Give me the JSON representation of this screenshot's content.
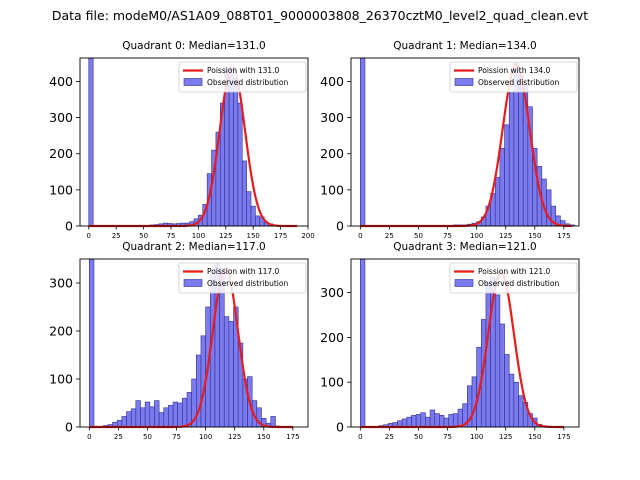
{
  "figure": {
    "suptitle": "Data file: modeM0/AS1A09_088T01_9000003808_26370cztM0_level2_quad_clean.evt",
    "colors": {
      "bar_fill": "#7b7bef",
      "bar_edge": "#2e2e8f",
      "fit_line": "#e81c1c",
      "axes": "#000000"
    }
  },
  "chart_data": [
    {
      "type": "bar",
      "title": "Quadrant 0: Median=131.0",
      "legend": {
        "fit_label": "Poission with 131.0",
        "obs_label": "Observed distribution",
        "placement": "top-right"
      },
      "xlim": [
        -8,
        200
      ],
      "ylim": [
        0,
        465
      ],
      "xticks": [
        0,
        25,
        50,
        75,
        100,
        125,
        150,
        175,
        200
      ],
      "yticks": [
        0,
        100,
        200,
        300,
        400
      ],
      "bin_width": 4,
      "bin_start": 0,
      "counts": [
        465,
        0,
        0,
        0,
        0,
        0,
        0,
        0,
        0,
        0,
        0,
        0,
        0,
        0,
        3,
        4,
        6,
        8,
        7,
        6,
        7,
        8,
        8,
        12,
        20,
        30,
        60,
        145,
        210,
        260,
        340,
        435,
        440,
        410,
        340,
        180,
        95,
        55,
        28,
        25,
        10,
        6,
        3,
        2,
        1,
        1,
        0,
        0,
        0
      ],
      "fit": {
        "peak": 440,
        "mean": 131,
        "sigma": 11.45,
        "range": [
          0,
          190
        ]
      }
    },
    {
      "type": "bar",
      "title": "Quadrant 1: Median=134.0",
      "legend": {
        "fit_label": "Poission with 134.0",
        "obs_label": "Observed distribution",
        "placement": "top-right"
      },
      "xlim": [
        -8,
        188
      ],
      "ylim": [
        0,
        465
      ],
      "xticks": [
        0,
        25,
        50,
        75,
        100,
        125,
        150,
        175
      ],
      "yticks": [
        0,
        100,
        200,
        300,
        400
      ],
      "bin_width": 4,
      "bin_start": 0,
      "counts": [
        465,
        0,
        0,
        0,
        0,
        0,
        0,
        0,
        0,
        0,
        0,
        0,
        0,
        0,
        0,
        0,
        0,
        0,
        0,
        2,
        3,
        3,
        3,
        5,
        8,
        12,
        25,
        55,
        90,
        135,
        215,
        280,
        370,
        450,
        420,
        390,
        330,
        215,
        165,
        130,
        100,
        55,
        28,
        15,
        6,
        3
      ],
      "fit": {
        "peak": 445,
        "mean": 134,
        "sigma": 11.58,
        "range": [
          0,
          182
        ]
      }
    },
    {
      "type": "bar",
      "title": "Quadrant 2: Median=117.0",
      "legend": {
        "fit_label": "Poission with 117.0",
        "obs_label": "Observed distribution",
        "placement": "top-right"
      },
      "xlim": [
        -8,
        188
      ],
      "ylim": [
        0,
        350
      ],
      "xticks": [
        0,
        25,
        50,
        75,
        100,
        125,
        150,
        175
      ],
      "yticks": [
        0,
        100,
        200,
        300
      ],
      "bin_width": 4,
      "bin_start": 0,
      "counts": [
        350,
        0,
        0,
        3,
        5,
        10,
        14,
        22,
        32,
        38,
        55,
        40,
        52,
        42,
        55,
        30,
        40,
        45,
        52,
        50,
        60,
        72,
        100,
        150,
        190,
        250,
        320,
        340,
        330,
        230,
        220,
        250,
        175,
        100,
        105,
        55,
        40,
        18,
        8,
        22,
        2,
        0
      ],
      "fit": {
        "peak": 330,
        "mean": 117,
        "sigma": 10.82,
        "range": [
          0,
          175
        ]
      }
    },
    {
      "type": "bar",
      "title": "Quadrant 3: Median=121.0",
      "legend": {
        "fit_label": "Poission with 121.0",
        "obs_label": "Observed distribution",
        "placement": "top-right"
      },
      "xlim": [
        -8,
        188
      ],
      "ylim": [
        0,
        375
      ],
      "xticks": [
        0,
        25,
        50,
        75,
        100,
        125,
        150,
        175
      ],
      "yticks": [
        0,
        100,
        200,
        300
      ],
      "bin_width": 4,
      "bin_start": 0,
      "counts": [
        375,
        0,
        0,
        0,
        3,
        5,
        8,
        10,
        14,
        18,
        22,
        26,
        28,
        32,
        22,
        38,
        30,
        26,
        20,
        28,
        30,
        40,
        52,
        92,
        112,
        178,
        240,
        322,
        335,
        295,
        230,
        162,
        118,
        100,
        70,
        55,
        30,
        20,
        6,
        3,
        1,
        0
      ],
      "fit": {
        "peak": 345,
        "mean": 121,
        "sigma": 11.0,
        "range": [
          0,
          175
        ]
      }
    }
  ]
}
